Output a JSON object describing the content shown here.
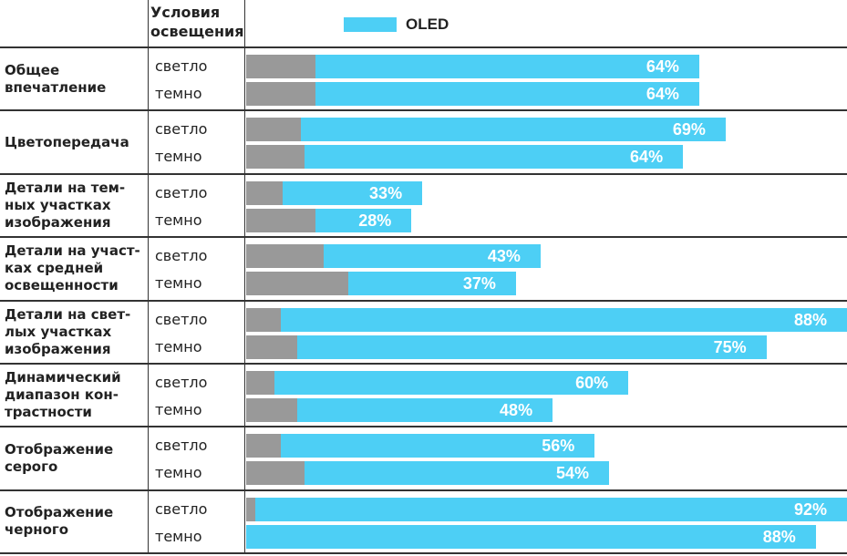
{
  "header": {
    "conditions": "Условия освещения"
  },
  "legend": [
    {
      "label": "OLED",
      "color": "#4dcff5"
    }
  ],
  "colors": {
    "blue": "#4dcff5",
    "grey": "#999999"
  },
  "chart_data": {
    "type": "bar",
    "orientation": "horizontal-stacked",
    "title": "",
    "legend": [
      "OLED"
    ],
    "legend_position": "top",
    "categories": [
      "Общее впечатление",
      "Цветопередача",
      "Детали на темных участках изображения",
      "Детали на участках средней освещенности",
      "Детали на светлых участках изображения",
      "Динамический диапазон контрастности",
      "Отображение серого",
      "Отображение черного"
    ],
    "conditions": [
      "светло",
      "темно"
    ],
    "groups": [
      {
        "label": "Общее впечатление",
        "rows": [
          {
            "condition": "светло",
            "grey": 11.5,
            "total": 75.4,
            "label": "64%"
          },
          {
            "condition": "темно",
            "grey": 11.5,
            "total": 75.4,
            "label": "64%"
          }
        ]
      },
      {
        "label": "Цветопередача",
        "rows": [
          {
            "condition": "светло",
            "grey": 9.1,
            "total": 79.8,
            "label": "69%"
          },
          {
            "condition": "темно",
            "grey": 9.7,
            "total": 72.7,
            "label": "64%"
          }
        ]
      },
      {
        "label": "Детали на тем-ных участках изображения",
        "rows": [
          {
            "condition": "светло",
            "grey": 6.1,
            "total": 29.3,
            "label": "33%"
          },
          {
            "condition": "темно",
            "grey": 11.5,
            "total": 27.5,
            "label": "28%"
          }
        ]
      },
      {
        "label": "Детали на участ-ках средней освещенности",
        "rows": [
          {
            "condition": "светло",
            "grey": 12.9,
            "total": 49.0,
            "label": "43%"
          },
          {
            "condition": "темно",
            "grey": 17.0,
            "total": 44.9,
            "label": "37%"
          }
        ]
      },
      {
        "label": "Детали на свет-лых участках изображения",
        "rows": [
          {
            "condition": "светло",
            "grey": 5.8,
            "total": 100,
            "label": "88%"
          },
          {
            "condition": "темно",
            "grey": 8.5,
            "total": 86.6,
            "label": "75%"
          }
        ]
      },
      {
        "label": "Динамический диапазон кон-трастности",
        "rows": [
          {
            "condition": "светло",
            "grey": 4.7,
            "total": 63.6,
            "label": "60%"
          },
          {
            "condition": "темно",
            "grey": 8.5,
            "total": 51.0,
            "label": "48%"
          }
        ]
      },
      {
        "label": "Отображение серого",
        "rows": [
          {
            "condition": "светло",
            "grey": 5.8,
            "total": 58.0,
            "label": "56%"
          },
          {
            "condition": "темно",
            "grey": 9.7,
            "total": 60.4,
            "label": "54%"
          }
        ]
      },
      {
        "label": "Отображение черного",
        "rows": [
          {
            "condition": "светло",
            "grey": 1.5,
            "total": 100,
            "label": "92%"
          },
          {
            "condition": "темно",
            "grey": 0,
            "total": 94.8,
            "label": "88%"
          }
        ]
      }
    ],
    "xlim": [
      0,
      100
    ]
  }
}
